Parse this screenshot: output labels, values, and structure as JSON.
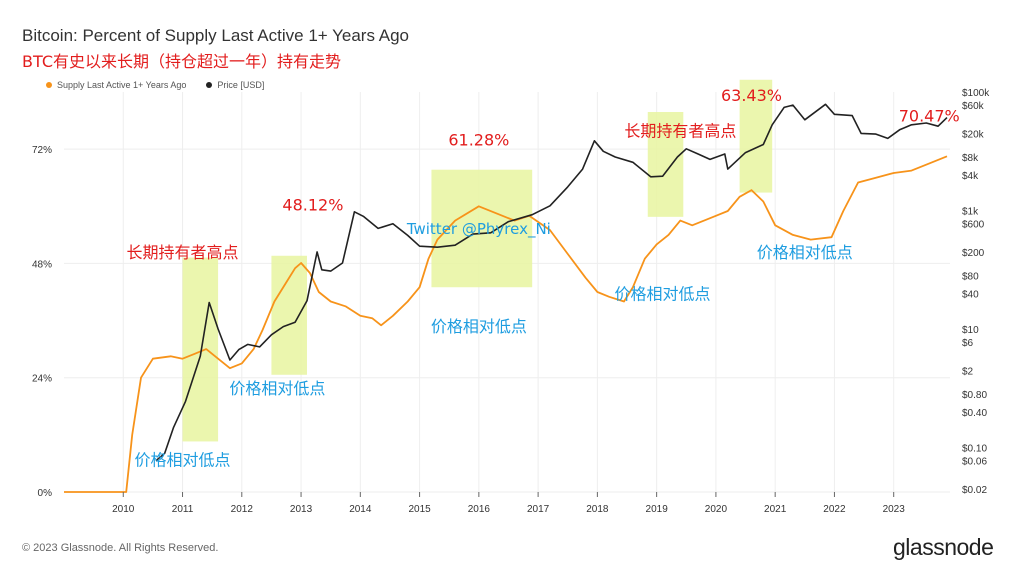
{
  "header": {
    "title": "Bitcoin: Percent of Supply Last Active 1+ Years Ago",
    "subtitle": "BTC有史以来长期（持仓超过一年）持有走势"
  },
  "footer": {
    "copyright": "© 2023 Glassnode. All Rights Reserved.",
    "logo": "glassnode"
  },
  "colors": {
    "supply": "#f7931a",
    "price": "#222222",
    "highlight": "#e8f5a0",
    "red_text": "#e21d1d",
    "blue_text": "#1e9de0"
  },
  "chart_data": {
    "type": "line",
    "title": "Bitcoin: Percent of Supply Last Active 1+ Years Ago",
    "subtitle": "BTC有史以来长期（持仓超过一年）持有走势",
    "xlabel": "",
    "ylabel": "",
    "x_ticks": [
      "2010",
      "2011",
      "2012",
      "2013",
      "2014",
      "2015",
      "2016",
      "2017",
      "2018",
      "2019",
      "2020",
      "2021",
      "2022",
      "2023"
    ],
    "y_left_ticks": [
      "0%",
      "24%",
      "48%",
      "72%"
    ],
    "y_right_ticks": [
      "$100k",
      "$60k",
      "$20k",
      "$8k",
      "$4k",
      "$1k",
      "$600",
      "$200",
      "$80",
      "$40",
      "$10",
      "$6",
      "$2",
      "$0.80",
      "$0.40",
      "$0.10",
      "$0.06",
      "$0.02"
    ],
    "y_left_range": [
      0,
      84
    ],
    "y_right_range_log10": [
      -1.75,
      5.0
    ],
    "legend_position": "top-left",
    "legend": [
      "Supply Last Active 1+ Years Ago",
      "Price [USD]"
    ],
    "grid": true,
    "series": [
      {
        "name": "Supply Last Active 1+ Years Ago",
        "axis": "left",
        "points": [
          [
            2009.0,
            0
          ],
          [
            2010.05,
            0
          ],
          [
            2010.15,
            12
          ],
          [
            2010.3,
            24
          ],
          [
            2010.5,
            28
          ],
          [
            2010.8,
            28.5
          ],
          [
            2011.0,
            28
          ],
          [
            2011.2,
            29
          ],
          [
            2011.4,
            30
          ],
          [
            2011.6,
            28
          ],
          [
            2011.8,
            26
          ],
          [
            2012.0,
            27
          ],
          [
            2012.2,
            30
          ],
          [
            2012.35,
            34
          ],
          [
            2012.55,
            40
          ],
          [
            2012.75,
            44
          ],
          [
            2012.9,
            47
          ],
          [
            2013.0,
            48.1
          ],
          [
            2013.15,
            46
          ],
          [
            2013.3,
            42
          ],
          [
            2013.5,
            40
          ],
          [
            2013.75,
            39
          ],
          [
            2014.0,
            37
          ],
          [
            2014.2,
            36.5
          ],
          [
            2014.35,
            35
          ],
          [
            2014.55,
            37
          ],
          [
            2014.8,
            40
          ],
          [
            2015.0,
            43
          ],
          [
            2015.15,
            49
          ],
          [
            2015.3,
            53
          ],
          [
            2015.6,
            57
          ],
          [
            2016.0,
            60
          ],
          [
            2016.3,
            58.5
          ],
          [
            2016.6,
            57
          ],
          [
            2016.85,
            58
          ],
          [
            2017.2,
            55
          ],
          [
            2017.5,
            50
          ],
          [
            2017.8,
            45
          ],
          [
            2018.0,
            42
          ],
          [
            2018.2,
            41
          ],
          [
            2018.45,
            40
          ],
          [
            2018.6,
            43
          ],
          [
            2018.8,
            49
          ],
          [
            2019.0,
            52
          ],
          [
            2019.2,
            54
          ],
          [
            2019.4,
            57
          ],
          [
            2019.6,
            56
          ],
          [
            2019.8,
            57
          ],
          [
            2020.0,
            58
          ],
          [
            2020.2,
            59
          ],
          [
            2020.4,
            62
          ],
          [
            2020.6,
            63.4
          ],
          [
            2020.8,
            61
          ],
          [
            2021.0,
            56
          ],
          [
            2021.3,
            54
          ],
          [
            2021.6,
            53
          ],
          [
            2021.95,
            53.5
          ],
          [
            2022.15,
            59
          ],
          [
            2022.4,
            65
          ],
          [
            2022.7,
            66
          ],
          [
            2023.0,
            67
          ],
          [
            2023.3,
            67.5
          ],
          [
            2023.6,
            69
          ],
          [
            2023.9,
            70.5
          ]
        ]
      },
      {
        "name": "Price [USD]",
        "axis": "right",
        "points": [
          [
            2010.55,
            0.06
          ],
          [
            2010.7,
            0.08
          ],
          [
            2010.85,
            0.22
          ],
          [
            2011.05,
            0.6
          ],
          [
            2011.3,
            3.5
          ],
          [
            2011.45,
            28
          ],
          [
            2011.6,
            10
          ],
          [
            2011.8,
            3
          ],
          [
            2011.95,
            4.5
          ],
          [
            2012.1,
            5.5
          ],
          [
            2012.3,
            5
          ],
          [
            2012.5,
            8
          ],
          [
            2012.7,
            11
          ],
          [
            2012.9,
            13
          ],
          [
            2013.1,
            30
          ],
          [
            2013.27,
            200
          ],
          [
            2013.35,
            100
          ],
          [
            2013.5,
            95
          ],
          [
            2013.7,
            130
          ],
          [
            2013.9,
            950
          ],
          [
            2014.05,
            800
          ],
          [
            2014.3,
            500
          ],
          [
            2014.55,
            600
          ],
          [
            2014.8,
            380
          ],
          [
            2015.0,
            250
          ],
          [
            2015.3,
            240
          ],
          [
            2015.6,
            260
          ],
          [
            2015.9,
            400
          ],
          [
            2016.2,
            420
          ],
          [
            2016.5,
            650
          ],
          [
            2016.9,
            850
          ],
          [
            2017.2,
            1200
          ],
          [
            2017.5,
            2500
          ],
          [
            2017.75,
            5000
          ],
          [
            2017.95,
            15000
          ],
          [
            2018.1,
            10000
          ],
          [
            2018.3,
            8000
          ],
          [
            2018.6,
            6500
          ],
          [
            2018.9,
            3700
          ],
          [
            2019.1,
            3800
          ],
          [
            2019.35,
            8000
          ],
          [
            2019.5,
            11000
          ],
          [
            2019.7,
            9000
          ],
          [
            2019.9,
            7300
          ],
          [
            2020.15,
            9000
          ],
          [
            2020.2,
            5000
          ],
          [
            2020.5,
            9500
          ],
          [
            2020.8,
            13000
          ],
          [
            2020.95,
            28000
          ],
          [
            2021.15,
            55000
          ],
          [
            2021.3,
            60000
          ],
          [
            2021.5,
            34000
          ],
          [
            2021.85,
            62000
          ],
          [
            2022.0,
            42000
          ],
          [
            2022.3,
            40000
          ],
          [
            2022.45,
            20000
          ],
          [
            2022.7,
            19500
          ],
          [
            2022.9,
            16500
          ],
          [
            2023.1,
            23000
          ],
          [
            2023.3,
            28000
          ],
          [
            2023.55,
            30000
          ],
          [
            2023.75,
            26500
          ],
          [
            2023.9,
            37000
          ]
        ]
      }
    ],
    "highlight_x_ranges": [
      [
        2011.0,
        2011.6
      ],
      [
        2012.5,
        2013.1
      ],
      [
        2015.2,
        2016.9
      ],
      [
        2018.85,
        2019.45
      ],
      [
        2020.4,
        2020.95
      ]
    ],
    "annotations": [
      {
        "text": "长期持有者高点",
        "color": "red",
        "x": 2011.0,
        "y_log10": 2.2
      },
      {
        "text": "48.12%",
        "color": "red",
        "x": 2013.2,
        "y_log10": 3.0
      },
      {
        "text": "61.28%",
        "color": "red",
        "x": 2016.0,
        "y_log10": 4.1
      },
      {
        "text": "长期持有者高点",
        "color": "red",
        "x": 2019.4,
        "y_log10": 4.25
      },
      {
        "text": "63.43%",
        "color": "red",
        "x": 2020.6,
        "y_log10": 4.85
      },
      {
        "text": "70.47%",
        "color": "red",
        "x": 2023.6,
        "y_log10": 4.5
      },
      {
        "text": "价格相对低点",
        "color": "blue",
        "x": 2011.0,
        "y_log10": -1.3
      },
      {
        "text": "价格相对低点",
        "color": "blue",
        "x": 2012.6,
        "y_log10": -0.1
      },
      {
        "text": "价格相对低点",
        "color": "blue",
        "x": 2016.0,
        "y_log10": 0.95
      },
      {
        "text": "价格相对低点",
        "color": "blue",
        "x": 2019.1,
        "y_log10": 1.5
      },
      {
        "text": "价格相对低点",
        "color": "blue",
        "x": 2021.5,
        "y_log10": 2.2
      },
      {
        "text": "Twitter @Phyrex_Ni",
        "color": "blue",
        "x": 2016.0,
        "y_log10": 2.6
      }
    ]
  }
}
